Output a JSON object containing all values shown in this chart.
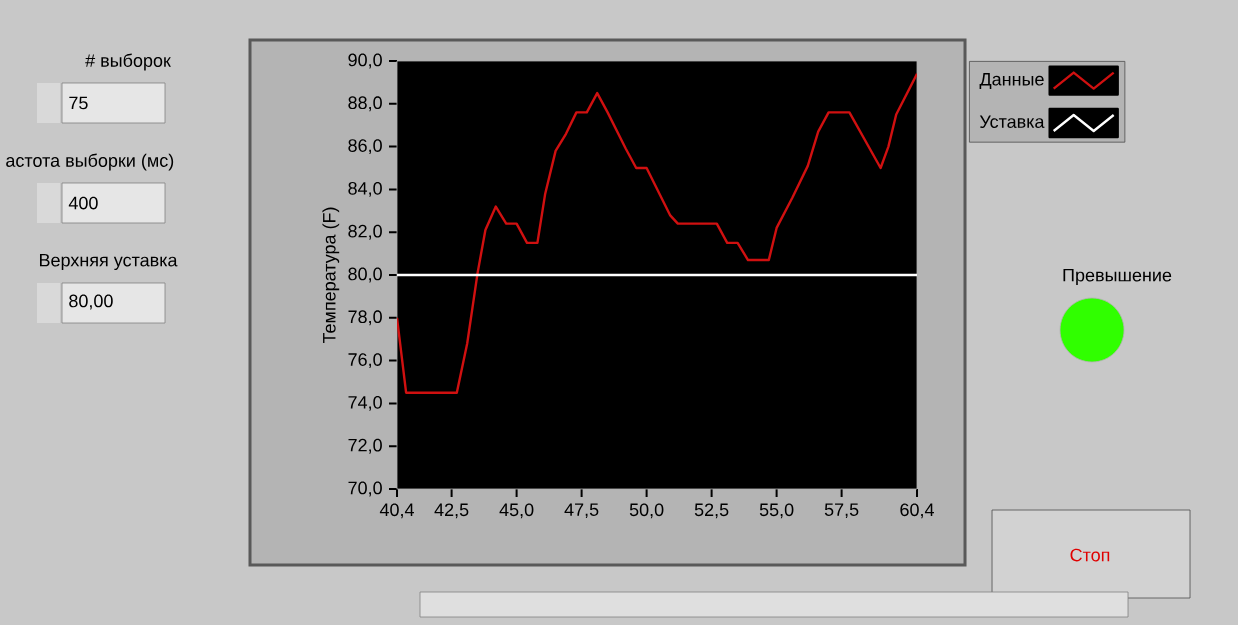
{
  "chart_data": {
    "type": "line",
    "ylabel": "Температура (F)",
    "xlim": [
      40.4,
      60.4
    ],
    "ylim": [
      70,
      90
    ],
    "xticks": [
      {
        "value": 40.4,
        "label": "40,4"
      },
      {
        "value": 42.5,
        "label": "42,5"
      },
      {
        "value": 45,
        "label": "45,0"
      },
      {
        "value": 47.5,
        "label": "47,5"
      },
      {
        "value": 50,
        "label": "50,0"
      },
      {
        "value": 52.5,
        "label": "52,5"
      },
      {
        "value": 55,
        "label": "55,0"
      },
      {
        "value": 57.5,
        "label": "57,5"
      },
      {
        "value": 60.4,
        "label": "60,4"
      }
    ],
    "yticks": [
      {
        "value": 70,
        "label": "70,0"
      },
      {
        "value": 72,
        "label": "72,0"
      },
      {
        "value": 74,
        "label": "74,0"
      },
      {
        "value": 76,
        "label": "76,0"
      },
      {
        "value": 78,
        "label": "78,0"
      },
      {
        "value": 80,
        "label": "80,0"
      },
      {
        "value": 82,
        "label": "82,0"
      },
      {
        "value": 84,
        "label": "84,0"
      },
      {
        "value": 86,
        "label": "86,0"
      },
      {
        "value": 88,
        "label": "88,0"
      },
      {
        "value": 90,
        "label": "90,0"
      }
    ],
    "series": [
      {
        "name": "Данные",
        "color": "#d01010",
        "x": [
          40.4,
          40.75,
          42.7,
          43.1,
          43.5,
          43.8,
          44.2,
          44.6,
          45.0,
          45.4,
          45.8,
          46.1,
          46.5,
          46.9,
          47.3,
          47.7,
          48.1,
          48.5,
          49.2,
          49.6,
          50.0,
          50.9,
          51.2,
          52.7,
          53.1,
          53.5,
          53.9,
          54.7,
          55.0,
          55.6,
          56.2,
          56.6,
          57.0,
          57.8,
          59.0,
          59.3,
          59.6,
          60.4
        ],
        "values": [
          78.0,
          74.5,
          74.5,
          76.8,
          80.1,
          82.1,
          83.2,
          82.4,
          82.4,
          81.5,
          81.5,
          83.8,
          85.8,
          86.6,
          87.6,
          87.6,
          88.5,
          87.6,
          85.9,
          85.0,
          85.0,
          82.8,
          82.4,
          82.4,
          81.5,
          81.5,
          80.7,
          80.7,
          82.2,
          83.6,
          85.1,
          86.7,
          87.6,
          87.6,
          85.0,
          86.0,
          87.5,
          89.4
        ]
      },
      {
        "name": "Уставка",
        "color": "#ffffff",
        "x": [
          40.4,
          60.4
        ],
        "values": [
          80,
          80
        ]
      }
    ],
    "legend": "top right",
    "grid": false,
    "marker": "none",
    "line_style": "solid",
    "annotations": [
      "# выборок",
      "75",
      "астота выборки (мс)",
      "400",
      "Верхняя уставка",
      "80,00",
      "Превышение",
      "Стоп"
    ]
  }
}
